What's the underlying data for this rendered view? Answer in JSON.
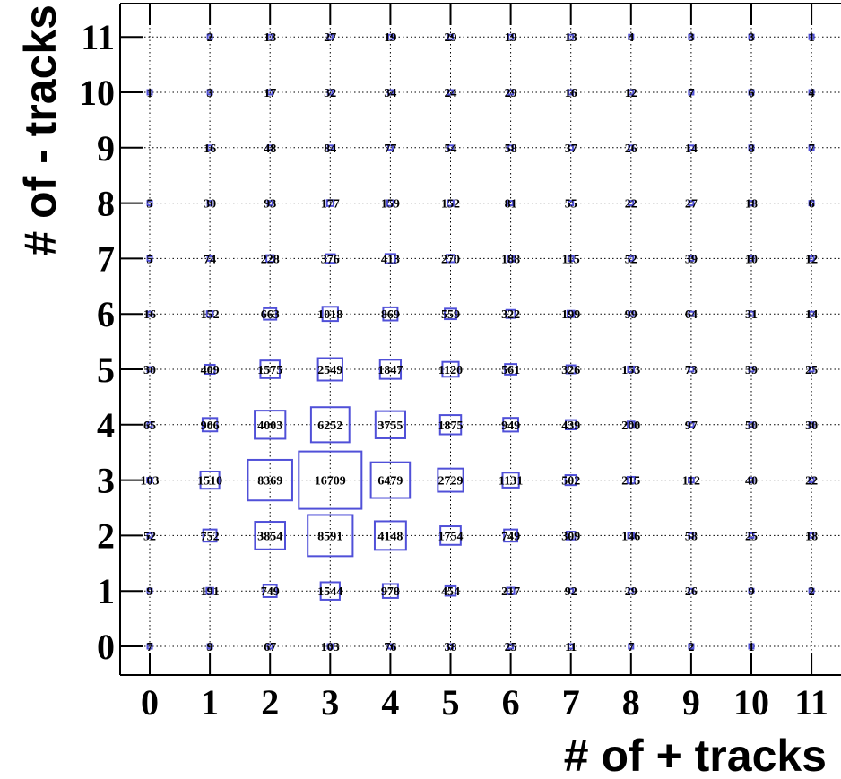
{
  "chart_data": {
    "type": "heatmap",
    "display": "box",
    "box_color": "#5050d8",
    "xlabel": "# of + tracks",
    "ylabel": "# of - tracks",
    "x": [
      0,
      1,
      2,
      3,
      4,
      5,
      6,
      7,
      8,
      9,
      10,
      11
    ],
    "y": [
      0,
      1,
      2,
      3,
      4,
      5,
      6,
      7,
      8,
      9,
      10,
      11
    ],
    "x_tick_labels": [
      "0",
      "1",
      "2",
      "3",
      "4",
      "5",
      "6",
      "7",
      "8",
      "9",
      "10",
      "11"
    ],
    "y_tick_labels": [
      "0",
      "1",
      "2",
      "3",
      "4",
      "5",
      "6",
      "7",
      "8",
      "9",
      "10",
      "11"
    ],
    "xlim": [
      -0.5,
      11.5
    ],
    "ylim": [
      -0.5,
      11.5
    ],
    "grid": true,
    "cells": [
      {
        "x": 0,
        "y": 0,
        "v": 7
      },
      {
        "x": 1,
        "y": 0,
        "v": 9
      },
      {
        "x": 2,
        "y": 0,
        "v": 67
      },
      {
        "x": 3,
        "y": 0,
        "v": 103
      },
      {
        "x": 4,
        "y": 0,
        "v": 76
      },
      {
        "x": 5,
        "y": 0,
        "v": 38
      },
      {
        "x": 6,
        "y": 0,
        "v": 25
      },
      {
        "x": 7,
        "y": 0,
        "v": 11
      },
      {
        "x": 8,
        "y": 0,
        "v": 7
      },
      {
        "x": 9,
        "y": 0,
        "v": 2
      },
      {
        "x": 10,
        "y": 0,
        "v": 1
      },
      {
        "x": 0,
        "y": 1,
        "v": 9
      },
      {
        "x": 1,
        "y": 1,
        "v": 191
      },
      {
        "x": 2,
        "y": 1,
        "v": 749
      },
      {
        "x": 3,
        "y": 1,
        "v": 1544
      },
      {
        "x": 4,
        "y": 1,
        "v": 978
      },
      {
        "x": 5,
        "y": 1,
        "v": 454
      },
      {
        "x": 6,
        "y": 1,
        "v": 217
      },
      {
        "x": 7,
        "y": 1,
        "v": 92
      },
      {
        "x": 8,
        "y": 1,
        "v": 29
      },
      {
        "x": 9,
        "y": 1,
        "v": 26
      },
      {
        "x": 10,
        "y": 1,
        "v": 9
      },
      {
        "x": 11,
        "y": 1,
        "v": 2
      },
      {
        "x": 0,
        "y": 2,
        "v": 52
      },
      {
        "x": 1,
        "y": 2,
        "v": 752
      },
      {
        "x": 2,
        "y": 2,
        "v": 3854
      },
      {
        "x": 3,
        "y": 2,
        "v": 8591
      },
      {
        "x": 4,
        "y": 2,
        "v": 4148
      },
      {
        "x": 5,
        "y": 2,
        "v": 1754
      },
      {
        "x": 6,
        "y": 2,
        "v": 749
      },
      {
        "x": 7,
        "y": 2,
        "v": 309
      },
      {
        "x": 8,
        "y": 2,
        "v": 146
      },
      {
        "x": 9,
        "y": 2,
        "v": 58
      },
      {
        "x": 10,
        "y": 2,
        "v": 25
      },
      {
        "x": 11,
        "y": 2,
        "v": 18
      },
      {
        "x": 0,
        "y": 3,
        "v": 103
      },
      {
        "x": 1,
        "y": 3,
        "v": 1510
      },
      {
        "x": 2,
        "y": 3,
        "v": 8369
      },
      {
        "x": 3,
        "y": 3,
        "v": 16709
      },
      {
        "x": 4,
        "y": 3,
        "v": 6479
      },
      {
        "x": 5,
        "y": 3,
        "v": 2729
      },
      {
        "x": 6,
        "y": 3,
        "v": 1131
      },
      {
        "x": 7,
        "y": 3,
        "v": 502
      },
      {
        "x": 8,
        "y": 3,
        "v": 215
      },
      {
        "x": 9,
        "y": 3,
        "v": 112
      },
      {
        "x": 10,
        "y": 3,
        "v": 40
      },
      {
        "x": 11,
        "y": 3,
        "v": 22
      },
      {
        "x": 0,
        "y": 4,
        "v": 65
      },
      {
        "x": 1,
        "y": 4,
        "v": 906
      },
      {
        "x": 2,
        "y": 4,
        "v": 4003
      },
      {
        "x": 3,
        "y": 4,
        "v": 6252
      },
      {
        "x": 4,
        "y": 4,
        "v": 3755
      },
      {
        "x": 5,
        "y": 4,
        "v": 1875
      },
      {
        "x": 6,
        "y": 4,
        "v": 949
      },
      {
        "x": 7,
        "y": 4,
        "v": 439
      },
      {
        "x": 8,
        "y": 4,
        "v": 200
      },
      {
        "x": 9,
        "y": 4,
        "v": 97
      },
      {
        "x": 10,
        "y": 4,
        "v": 50
      },
      {
        "x": 11,
        "y": 4,
        "v": 30
      },
      {
        "x": 0,
        "y": 5,
        "v": 30
      },
      {
        "x": 1,
        "y": 5,
        "v": 409
      },
      {
        "x": 2,
        "y": 5,
        "v": 1575
      },
      {
        "x": 3,
        "y": 5,
        "v": 2549
      },
      {
        "x": 4,
        "y": 5,
        "v": 1847
      },
      {
        "x": 5,
        "y": 5,
        "v": 1120
      },
      {
        "x": 6,
        "y": 5,
        "v": 561
      },
      {
        "x": 7,
        "y": 5,
        "v": 326
      },
      {
        "x": 8,
        "y": 5,
        "v": 153
      },
      {
        "x": 9,
        "y": 5,
        "v": 73
      },
      {
        "x": 10,
        "y": 5,
        "v": 39
      },
      {
        "x": 11,
        "y": 5,
        "v": 25
      },
      {
        "x": 0,
        "y": 6,
        "v": 16
      },
      {
        "x": 1,
        "y": 6,
        "v": 152
      },
      {
        "x": 2,
        "y": 6,
        "v": 663
      },
      {
        "x": 3,
        "y": 6,
        "v": 1018
      },
      {
        "x": 4,
        "y": 6,
        "v": 869
      },
      {
        "x": 5,
        "y": 6,
        "v": 559
      },
      {
        "x": 6,
        "y": 6,
        "v": 322
      },
      {
        "x": 7,
        "y": 6,
        "v": 199
      },
      {
        "x": 8,
        "y": 6,
        "v": 99
      },
      {
        "x": 9,
        "y": 6,
        "v": 64
      },
      {
        "x": 10,
        "y": 6,
        "v": 31
      },
      {
        "x": 11,
        "y": 6,
        "v": 14
      },
      {
        "x": 0,
        "y": 7,
        "v": 5
      },
      {
        "x": 1,
        "y": 7,
        "v": 74
      },
      {
        "x": 2,
        "y": 7,
        "v": 228
      },
      {
        "x": 3,
        "y": 7,
        "v": 376
      },
      {
        "x": 4,
        "y": 7,
        "v": 413
      },
      {
        "x": 5,
        "y": 7,
        "v": 270
      },
      {
        "x": 6,
        "y": 7,
        "v": 188
      },
      {
        "x": 7,
        "y": 7,
        "v": 115
      },
      {
        "x": 8,
        "y": 7,
        "v": 52
      },
      {
        "x": 9,
        "y": 7,
        "v": 39
      },
      {
        "x": 10,
        "y": 7,
        "v": 10
      },
      {
        "x": 11,
        "y": 7,
        "v": 12
      },
      {
        "x": 0,
        "y": 8,
        "v": 5
      },
      {
        "x": 1,
        "y": 8,
        "v": 30
      },
      {
        "x": 2,
        "y": 8,
        "v": 93
      },
      {
        "x": 3,
        "y": 8,
        "v": 177
      },
      {
        "x": 4,
        "y": 8,
        "v": 159
      },
      {
        "x": 5,
        "y": 8,
        "v": 152
      },
      {
        "x": 6,
        "y": 8,
        "v": 81
      },
      {
        "x": 7,
        "y": 8,
        "v": 55
      },
      {
        "x": 8,
        "y": 8,
        "v": 22
      },
      {
        "x": 9,
        "y": 8,
        "v": 27
      },
      {
        "x": 10,
        "y": 8,
        "v": 18
      },
      {
        "x": 11,
        "y": 8,
        "v": 6
      },
      {
        "x": 1,
        "y": 9,
        "v": 16
      },
      {
        "x": 2,
        "y": 9,
        "v": 48
      },
      {
        "x": 3,
        "y": 9,
        "v": 84
      },
      {
        "x": 4,
        "y": 9,
        "v": 77
      },
      {
        "x": 5,
        "y": 9,
        "v": 54
      },
      {
        "x": 6,
        "y": 9,
        "v": 58
      },
      {
        "x": 7,
        "y": 9,
        "v": 37
      },
      {
        "x": 8,
        "y": 9,
        "v": 26
      },
      {
        "x": 9,
        "y": 9,
        "v": 14
      },
      {
        "x": 10,
        "y": 9,
        "v": 8
      },
      {
        "x": 11,
        "y": 9,
        "v": 7
      },
      {
        "x": 0,
        "y": 10,
        "v": 1
      },
      {
        "x": 1,
        "y": 10,
        "v": 3
      },
      {
        "x": 2,
        "y": 10,
        "v": 17
      },
      {
        "x": 3,
        "y": 10,
        "v": 32
      },
      {
        "x": 4,
        "y": 10,
        "v": 34
      },
      {
        "x": 5,
        "y": 10,
        "v": 24
      },
      {
        "x": 6,
        "y": 10,
        "v": 29
      },
      {
        "x": 7,
        "y": 10,
        "v": 16
      },
      {
        "x": 8,
        "y": 10,
        "v": 12
      },
      {
        "x": 9,
        "y": 10,
        "v": 7
      },
      {
        "x": 10,
        "y": 10,
        "v": 6
      },
      {
        "x": 11,
        "y": 10,
        "v": 4
      },
      {
        "x": 1,
        "y": 11,
        "v": 2
      },
      {
        "x": 2,
        "y": 11,
        "v": 13
      },
      {
        "x": 3,
        "y": 11,
        "v": 27
      },
      {
        "x": 4,
        "y": 11,
        "v": 19
      },
      {
        "x": 5,
        "y": 11,
        "v": 29
      },
      {
        "x": 6,
        "y": 11,
        "v": 19
      },
      {
        "x": 7,
        "y": 11,
        "v": 13
      },
      {
        "x": 8,
        "y": 11,
        "v": 4
      },
      {
        "x": 9,
        "y": 11,
        "v": 3
      },
      {
        "x": 10,
        "y": 11,
        "v": 3
      },
      {
        "x": 11,
        "y": 11,
        "v": 1
      }
    ]
  }
}
